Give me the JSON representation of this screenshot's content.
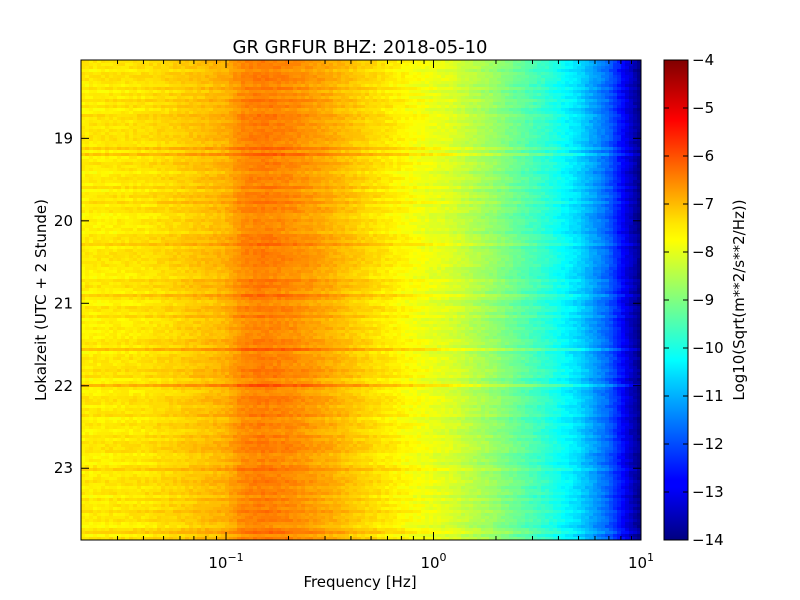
{
  "chart_data": {
    "type": "heatmap",
    "title": "GR GRFUR BHZ: 2018-05-10",
    "xlabel": "Frequency [Hz]",
    "ylabel": "Lokalzeit (UTC + 2 Stunde)",
    "colorbar_label": "Log10(Sqrt(m**2/s**2/Hz))",
    "x_scale": "log",
    "xlim": [
      0.02,
      10
    ],
    "ylim": [
      18.05,
      23.87
    ],
    "y_inverted": true,
    "x_ticks": [
      {
        "value": 0.1,
        "base": "10",
        "exp": "−1"
      },
      {
        "value": 1,
        "base": "10",
        "exp": "0"
      },
      {
        "value": 10,
        "base": "10",
        "exp": "1"
      }
    ],
    "y_ticks": [
      19,
      20,
      21,
      22,
      23
    ],
    "colorbar_ticks": [
      -4,
      -5,
      -6,
      -7,
      -8,
      -9,
      -10,
      -11,
      -12,
      -13,
      -14
    ],
    "color_range": [
      -14,
      -4
    ],
    "colormap": "jet",
    "spectrum_profile": {
      "frequency_hz": [
        0.02,
        0.04,
        0.06,
        0.1,
        0.12,
        0.15,
        0.2,
        0.3,
        0.5,
        0.8,
        1.2,
        2,
        3.5,
        5,
        7,
        8.5,
        10
      ],
      "value": [
        -7.6,
        -7.5,
        -7.3,
        -7.0,
        -6.6,
        -6.5,
        -6.6,
        -6.9,
        -7.4,
        -7.8,
        -8.1,
        -8.8,
        -9.8,
        -10.6,
        -11.8,
        -13.0,
        -14.0
      ]
    }
  }
}
